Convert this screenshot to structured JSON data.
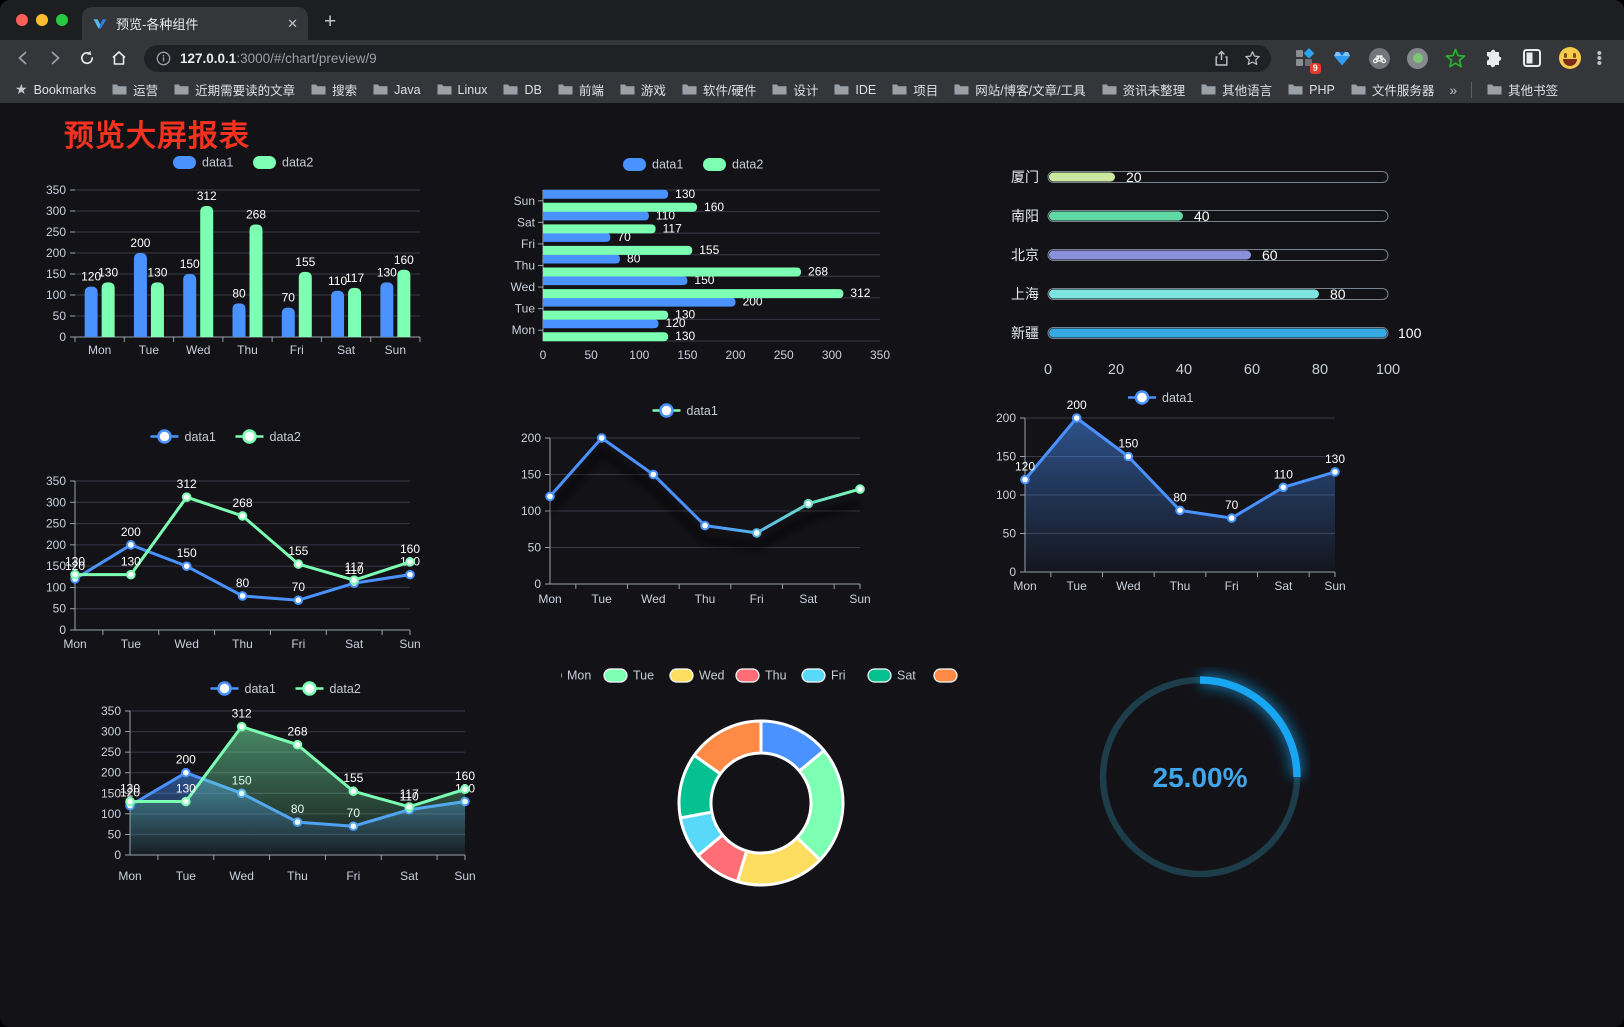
{
  "window": {
    "traffic_lights": [
      "#ff5f57",
      "#febc2e",
      "#28c840"
    ]
  },
  "tab": {
    "title": "预览-各种组件"
  },
  "address_bar": {
    "host": "127.0.0.1",
    "path": ":3000/#/chart/preview/9"
  },
  "extensions": {
    "badge_count": "9"
  },
  "bookmarks_bar": {
    "label": "Bookmarks",
    "folders": [
      "运营",
      "近期需要读的文章",
      "搜索",
      "Java",
      "Linux",
      "DB",
      "前端",
      "游戏",
      "软件/硬件",
      "设计",
      "IDE",
      "项目",
      "网站/博客/文章/工具",
      "资讯未整理",
      "其他语言",
      "PHP",
      "文件服务器"
    ],
    "overflow_glyph": "»",
    "other_bookmarks": "其他书签"
  },
  "page": {
    "title": "预览大屏报表",
    "title_color": "#f5321f",
    "background": "#121217"
  },
  "chart_data": [
    {
      "id": "bar",
      "type": "bar",
      "categories": [
        "Mon",
        "Tue",
        "Wed",
        "Thu",
        "Fri",
        "Sat",
        "Sun"
      ],
      "series": [
        {
          "name": "data1",
          "color": "#4992ff",
          "values": [
            120,
            200,
            150,
            80,
            70,
            110,
            130
          ]
        },
        {
          "name": "data2",
          "color": "#7cffb2",
          "values": [
            130,
            130,
            312,
            268,
            155,
            117,
            160
          ]
        }
      ],
      "ylim": [
        0,
        350
      ],
      "ystep": 50,
      "show_labels": true,
      "legend_position": "top",
      "grid": true
    },
    {
      "id": "hbar",
      "type": "hbar",
      "categories": [
        "Mon",
        "Tue",
        "Wed",
        "Thu",
        "Fri",
        "Sat",
        "Sun"
      ],
      "series": [
        {
          "name": "data1",
          "color": "#4992ff",
          "values": [
            120,
            200,
            150,
            80,
            70,
            110,
            130
          ]
        },
        {
          "name": "data2",
          "color": "#7cffb2",
          "values": [
            130,
            130,
            312,
            268,
            155,
            117,
            160
          ]
        }
      ],
      "xlim": [
        0,
        350
      ],
      "xstep": 50,
      "show_labels": true,
      "legend_position": "top",
      "grid": true
    },
    {
      "id": "progress",
      "type": "progress",
      "items": [
        {
          "label": "厦门",
          "value": 20,
          "color": "#cbe7a0"
        },
        {
          "label": "南阳",
          "value": 40,
          "color": "#5fd8a6"
        },
        {
          "label": "北京",
          "value": 60,
          "color": "#8a90dc"
        },
        {
          "label": "上海",
          "value": 80,
          "color": "#7ce5e0"
        },
        {
          "label": "新疆",
          "value": 100,
          "color": "#36a9e3"
        }
      ],
      "max": 100,
      "ticks": [
        0,
        20,
        40,
        60,
        80,
        100
      ]
    },
    {
      "id": "line2",
      "type": "line",
      "categories": [
        "Mon",
        "Tue",
        "Wed",
        "Thu",
        "Fri",
        "Sat",
        "Sun"
      ],
      "series": [
        {
          "name": "data1",
          "color": "#4992ff",
          "values": [
            120,
            200,
            150,
            80,
            70,
            110,
            130
          ]
        },
        {
          "name": "data2",
          "color": "#7cffb2",
          "values": [
            130,
            130,
            312,
            268,
            155,
            117,
            160
          ]
        }
      ],
      "ylim": [
        0,
        350
      ],
      "ystep": 50,
      "show_labels": true,
      "legend_position": "top"
    },
    {
      "id": "linegrad",
      "type": "line",
      "categories": [
        "Mon",
        "Tue",
        "Wed",
        "Thu",
        "Fri",
        "Sat",
        "Sun"
      ],
      "series": [
        {
          "name": "data1",
          "color": "#4992ff",
          "gradient": [
            "#4992ff",
            "#4992ff",
            "#7cffb2"
          ],
          "values": [
            120,
            200,
            150,
            80,
            70,
            110,
            130
          ]
        }
      ],
      "ylim": [
        0,
        200
      ],
      "ystep": 50,
      "show_labels": false,
      "shadow": true,
      "legend_position": "top"
    },
    {
      "id": "area1",
      "type": "line",
      "area": true,
      "categories": [
        "Mon",
        "Tue",
        "Wed",
        "Thu",
        "Fri",
        "Sat",
        "Sun"
      ],
      "series": [
        {
          "name": "data1",
          "color": "#4992ff",
          "values": [
            120,
            200,
            150,
            80,
            70,
            110,
            130
          ]
        }
      ],
      "ylim": [
        0,
        200
      ],
      "ystep": 50,
      "show_labels": true,
      "legend_position": "top"
    },
    {
      "id": "area2",
      "type": "line",
      "area": true,
      "categories": [
        "Mon",
        "Tue",
        "Wed",
        "Thu",
        "Fri",
        "Sat",
        "Sun"
      ],
      "series": [
        {
          "name": "data1",
          "color": "#4992ff",
          "values": [
            120,
            200,
            150,
            80,
            70,
            110,
            130
          ]
        },
        {
          "name": "data2",
          "color": "#7cffb2",
          "values": [
            130,
            130,
            312,
            268,
            155,
            117,
            160
          ]
        }
      ],
      "ylim": [
        0,
        350
      ],
      "ystep": 50,
      "show_labels": true,
      "legend_position": "top"
    },
    {
      "id": "donut",
      "type": "pie",
      "inner_radius_ratio": 0.61,
      "border_color": "#ffffff",
      "items": [
        {
          "label": "Mon",
          "value": 120,
          "color": "#4992ff"
        },
        {
          "label": "Tue",
          "value": 200,
          "color": "#7cffb2"
        },
        {
          "label": "Wed",
          "value": 150,
          "color": "#fddd60"
        },
        {
          "label": "Thu",
          "value": 80,
          "color": "#ff6e76"
        },
        {
          "label": "Fri",
          "value": 70,
          "color": "#58d9f9"
        },
        {
          "label": "Sat",
          "value": 110,
          "color": "#05c091"
        },
        {
          "label": "Sun",
          "value": 130,
          "color": "#ff8a45"
        }
      ],
      "legend_position": "top"
    },
    {
      "id": "gauge",
      "type": "gauge",
      "value": 25,
      "display": "25.00%",
      "color": "#18a6f2",
      "track_color": "#1d3d4a",
      "text_color": "#41a5e9"
    }
  ]
}
